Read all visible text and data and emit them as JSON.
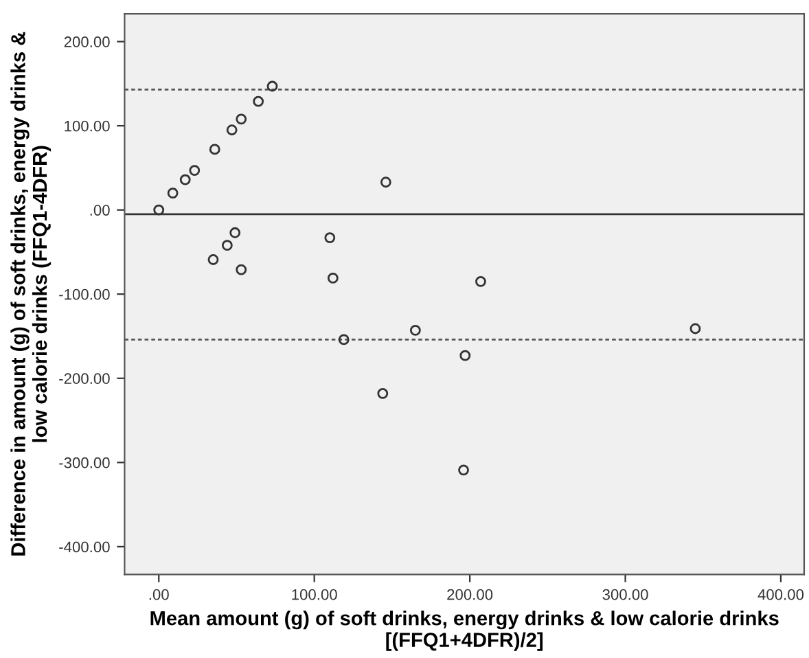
{
  "chart_data": {
    "type": "scatter",
    "xlabel": "Mean amount (g) of soft drinks, energy drinks & low calorie drinks\n[(FFQ1+4DFR)/2]",
    "ylabel": "Difference in amount (g) of soft drinks, energy drinks &\nlow calorie drinks (FFQ1-4DFR)",
    "series": [
      {
        "color": "#333333",
        "x": [
          73,
          64,
          53,
          47,
          36,
          23,
          17,
          11,
          9,
          8,
          2,
          1,
          0,
          146,
          49,
          44,
          35,
          53,
          110,
          112,
          207,
          119,
          144,
          165,
          197,
          196,
          345
        ],
        "values": [
          147,
          129,
          108,
          95,
          72,
          47,
          36,
          null,
          20,
          null,
          null,
          null,
          0,
          33,
          -27,
          -42,
          -59,
          -71,
          -33,
          -81,
          -85,
          -154,
          -218,
          -143,
          -173,
          -309,
          -141
        ]
      }
    ],
    "marker": "circle",
    "xlim": [
      -22,
      415
    ],
    "ylim": [
      -433,
      233
    ],
    "xticks": [
      {
        "value": 0,
        "label": ".00"
      },
      {
        "value": 100,
        "label": "100.00"
      },
      {
        "value": 200,
        "label": "200.00"
      },
      {
        "value": 300,
        "label": "300.00"
      },
      {
        "value": 400,
        "label": "400.00"
      }
    ],
    "yticks": [
      {
        "value": -400,
        "label": "-400.00"
      },
      {
        "value": -300,
        "label": "-300.00"
      },
      {
        "value": -200,
        "label": "-200.00"
      },
      {
        "value": -100,
        "label": "-100.00"
      },
      {
        "value": 0,
        "label": ".00"
      },
      {
        "value": 100,
        "label": "100.00"
      },
      {
        "value": 200,
        "label": "200.00"
      }
    ],
    "ref_lines": [
      {
        "axis": "y",
        "value": 143,
        "line_style": "dotted",
        "color": "#555555"
      },
      {
        "axis": "y",
        "value": -5,
        "line_style": "solid",
        "color": "#333333"
      },
      {
        "axis": "y",
        "value": -154,
        "line_style": "dotted",
        "color": "#555555"
      }
    ],
    "grid": false
  }
}
